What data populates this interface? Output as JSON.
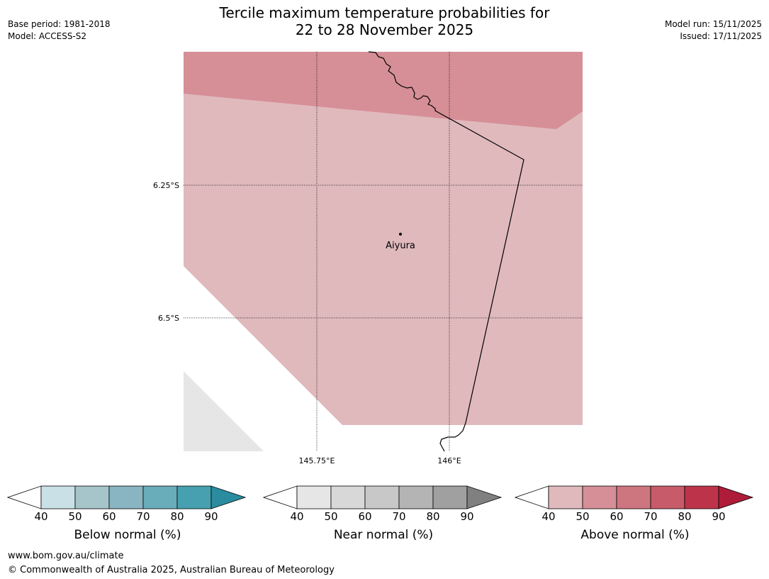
{
  "title_line1": "Tercile maximum temperature probabilities for",
  "title_line2": "22 to 28 November 2025",
  "base_period": "Base period: 1981-2018",
  "model": "Model: ACCESS-S2",
  "model_run": "Model run: 15/11/2025",
  "issued": "Issued: 17/11/2025",
  "map": {
    "lat_labels": [
      "6.25°S",
      "6.5°S"
    ],
    "lon_labels": [
      "145.75°E",
      "146°E"
    ],
    "place": "Aiyura",
    "colors": {
      "above_60": "#d68f97",
      "above_50": "#e0b9bd",
      "near_40": "#e6e6e6",
      "border": "#000000"
    }
  },
  "colorbars": [
    {
      "label": "Below normal (%)",
      "ticks": [
        "40",
        "50",
        "60",
        "70",
        "80",
        "90"
      ],
      "colors": [
        "#c9e1e6",
        "#a6c5ca",
        "#89b5c2",
        "#6aadba",
        "#46a0af",
        "#2a8c9e"
      ]
    },
    {
      "label": "Near normal (%)",
      "ticks": [
        "40",
        "50",
        "60",
        "70",
        "80",
        "90"
      ],
      "colors": [
        "#e6e6e6",
        "#d8d8d8",
        "#c8c8c8",
        "#b4b4b4",
        "#a0a0a0",
        "#808080"
      ]
    },
    {
      "label": "Above normal (%)",
      "ticks": [
        "40",
        "50",
        "60",
        "70",
        "80",
        "90"
      ],
      "colors": [
        "#e0b9bd",
        "#d68f97",
        "#cd7680",
        "#c75b69",
        "#bd344a",
        "#ae1c39"
      ]
    }
  ],
  "footer_url": "www.bom.gov.au/climate",
  "footer_copyright": "© Commonwealth of Australia 2025, Australian Bureau of Meteorology"
}
